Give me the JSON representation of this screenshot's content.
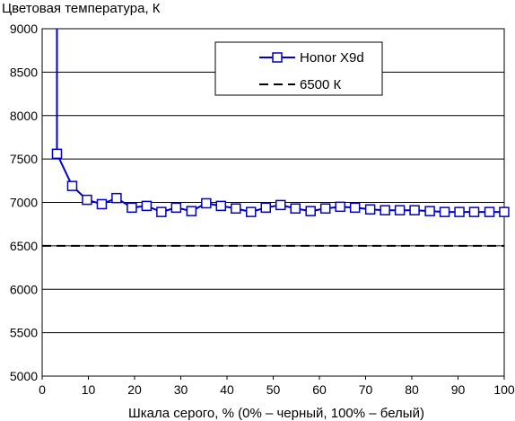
{
  "chart_data": {
    "type": "line",
    "ylabel": "Цветовая температура, К",
    "xlabel": "Шкала серого, % (0% – черный, 100% – белый)",
    "xlim": [
      0,
      100
    ],
    "ylim": [
      5000,
      9000
    ],
    "xticks": [
      "0",
      "10",
      "20",
      "30",
      "40",
      "50",
      "60",
      "70",
      "80",
      "90",
      "100"
    ],
    "yticks": [
      "5000",
      "5500",
      "6000",
      "6500",
      "7000",
      "7500",
      "8000",
      "8500",
      "9000"
    ],
    "grid": "horizontal",
    "legend": "top-right",
    "series": [
      {
        "name": "Honor X9d",
        "color": "#0000cc",
        "marker": "square",
        "x": [
          3.2,
          6.5,
          9.7,
          12.9,
          16.1,
          19.4,
          22.6,
          25.8,
          29.0,
          32.3,
          35.5,
          38.7,
          41.9,
          45.2,
          48.4,
          51.6,
          54.8,
          58.1,
          61.3,
          64.5,
          67.7,
          71.0,
          74.2,
          77.4,
          80.6,
          83.9,
          87.1,
          90.3,
          93.5,
          96.8,
          100
        ],
        "y": [
          7560,
          7190,
          7030,
          6980,
          7050,
          6940,
          6960,
          6890,
          6940,
          6900,
          6990,
          6960,
          6930,
          6890,
          6940,
          6970,
          6930,
          6900,
          6930,
          6950,
          6940,
          6920,
          6910,
          6910,
          6910,
          6900,
          6890,
          6890,
          6890,
          6890,
          6890
        ],
        "lead_in": {
          "x": 3.2,
          "y_from": 9000
        }
      },
      {
        "name": "6500 К",
        "color": "#000000",
        "style": "dashed",
        "y": 6500
      }
    ]
  }
}
